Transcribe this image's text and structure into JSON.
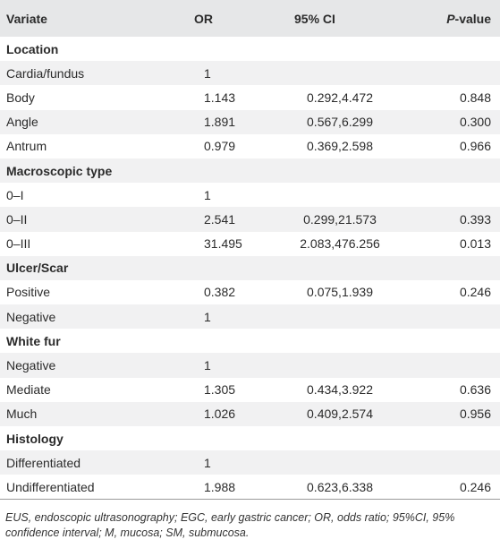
{
  "table": {
    "headers": {
      "variate": "Variate",
      "or": "OR",
      "ci": "95% CI",
      "p_italic": "P",
      "p_rest": "-value"
    },
    "rows": [
      {
        "type": "section",
        "variate": "Location",
        "or": "",
        "ci": "",
        "p": ""
      },
      {
        "type": "data",
        "variate": "Cardia/fundus",
        "or": "1",
        "ci": "",
        "p": ""
      },
      {
        "type": "data",
        "variate": "Body",
        "or": "1.143",
        "ci": "0.292,4.472",
        "p": "0.848"
      },
      {
        "type": "data",
        "variate": "Angle",
        "or": "1.891",
        "ci": "0.567,6.299",
        "p": "0.300"
      },
      {
        "type": "data",
        "variate": "Antrum",
        "or": "0.979",
        "ci": "0.369,2.598",
        "p": "0.966"
      },
      {
        "type": "section",
        "variate": "Macroscopic type",
        "or": "",
        "ci": "",
        "p": ""
      },
      {
        "type": "data",
        "variate": "0–I",
        "or": "1",
        "ci": "",
        "p": ""
      },
      {
        "type": "data",
        "variate": "0–II",
        "or": "2.541",
        "ci": "0.299,21.573",
        "p": "0.393"
      },
      {
        "type": "data",
        "variate": "0–III",
        "or": "31.495",
        "ci": "2.083,476.256",
        "p": "0.013"
      },
      {
        "type": "section",
        "variate": "Ulcer/Scar",
        "or": "",
        "ci": "",
        "p": ""
      },
      {
        "type": "data",
        "variate": "Positive",
        "or": "0.382",
        "ci": "0.075,1.939",
        "p": "0.246"
      },
      {
        "type": "data",
        "variate": "Negative",
        "or": "1",
        "ci": "",
        "p": ""
      },
      {
        "type": "section",
        "variate": "White fur",
        "or": "",
        "ci": "",
        "p": ""
      },
      {
        "type": "data",
        "variate": "Negative",
        "or": "1",
        "ci": "",
        "p": ""
      },
      {
        "type": "data",
        "variate": "Mediate",
        "or": "1.305",
        "ci": "0.434,3.922",
        "p": "0.636"
      },
      {
        "type": "data",
        "variate": "Much",
        "or": "1.026",
        "ci": "0.409,2.574",
        "p": "0.956"
      },
      {
        "type": "section",
        "variate": "Histology",
        "or": "",
        "ci": "",
        "p": ""
      },
      {
        "type": "data",
        "variate": "Differentiated",
        "or": "1",
        "ci": "",
        "p": ""
      },
      {
        "type": "data",
        "variate": "Undifferentiated",
        "or": "1.988",
        "ci": "0.623,6.338",
        "p": "0.246"
      }
    ]
  },
  "footnote": "EUS, endoscopic ultrasonography; EGC, early gastric cancer; OR, odds ratio; 95%CI, 95% confidence interval; M, mucosa; SM, submucosa.",
  "colors": {
    "header_bg": "#e6e7e8",
    "stripe_bg": "#f1f1f2",
    "text": "#2b2b2b"
  }
}
